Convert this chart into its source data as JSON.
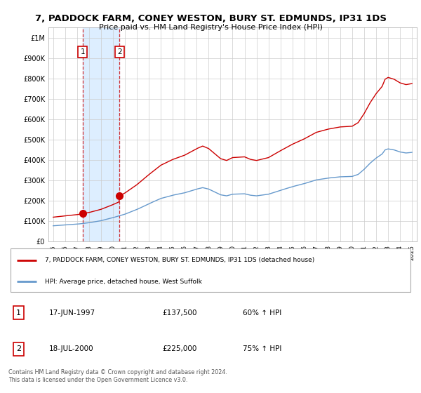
{
  "title": "7, PADDOCK FARM, CONEY WESTON, BURY ST. EDMUNDS, IP31 1DS",
  "subtitle": "Price paid vs. HM Land Registry's House Price Index (HPI)",
  "legend_line1": "7, PADDOCK FARM, CONEY WESTON, BURY ST. EDMUNDS, IP31 1DS (detached house)",
  "legend_line2": "HPI: Average price, detached house, West Suffolk",
  "transaction1_label": "1",
  "transaction1_date": "17-JUN-1997",
  "transaction1_price": "£137,500",
  "transaction1_hpi": "60% ↑ HPI",
  "transaction2_label": "2",
  "transaction2_date": "18-JUL-2000",
  "transaction2_price": "£225,000",
  "transaction2_hpi": "75% ↑ HPI",
  "copyright": "Contains HM Land Registry data © Crown copyright and database right 2024.\nThis data is licensed under the Open Government Licence v3.0.",
  "red_line_color": "#cc0000",
  "blue_line_color": "#6699cc",
  "shade_color": "#ddeeff",
  "background_color": "#ffffff",
  "plot_bg_color": "#ffffff",
  "grid_color": "#cccccc",
  "transaction1_x": 1997.46,
  "transaction1_y": 137500,
  "transaction2_x": 2000.54,
  "transaction2_y": 225000,
  "ylim": [
    0,
    1050000
  ],
  "xlim": [
    1994.6,
    2025.4
  ],
  "yticks": [
    0,
    100000,
    200000,
    300000,
    400000,
    500000,
    600000,
    700000,
    800000,
    900000,
    1000000
  ],
  "ytick_labels": [
    "£0",
    "£100K",
    "£200K",
    "£300K",
    "£400K",
    "£500K",
    "£600K",
    "£700K",
    "£800K",
    "£900K",
    "£1M"
  ]
}
